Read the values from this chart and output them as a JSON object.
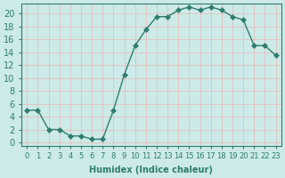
{
  "x": [
    0,
    1,
    2,
    3,
    4,
    5,
    6,
    7,
    8,
    9,
    10,
    11,
    12,
    13,
    14,
    15,
    16,
    17,
    18,
    19,
    20,
    21,
    22,
    23
  ],
  "y": [
    5,
    5,
    2,
    2,
    1,
    1,
    0.5,
    0.5,
    5,
    10.5,
    15,
    17.5,
    19.5,
    19.5,
    20.5,
    21,
    20.5,
    21,
    20.5,
    19.5,
    19,
    15,
    15,
    13.5
  ],
  "line_color": "#2e7d6e",
  "marker": "D",
  "marker_size": 3,
  "bg_color": "#cceae8",
  "grid_color": "#e8b8b8",
  "tick_color": "#2e7d6e",
  "xlabel": "Humidex (Indice chaleur)",
  "xlim": [
    -0.5,
    23.5
  ],
  "ylim": [
    -0.5,
    21.5
  ],
  "yticks": [
    0,
    2,
    4,
    6,
    8,
    10,
    12,
    14,
    16,
    18,
    20
  ],
  "xtick_labels": [
    "0",
    "1",
    "2",
    "3",
    "4",
    "5",
    "6",
    "7",
    "8",
    "9",
    "10",
    "11",
    "12",
    "13",
    "14",
    "15",
    "16",
    "17",
    "18",
    "19",
    "20",
    "21",
    "22",
    "23"
  ],
  "font_color": "#2e7d6e",
  "font_size": 7
}
